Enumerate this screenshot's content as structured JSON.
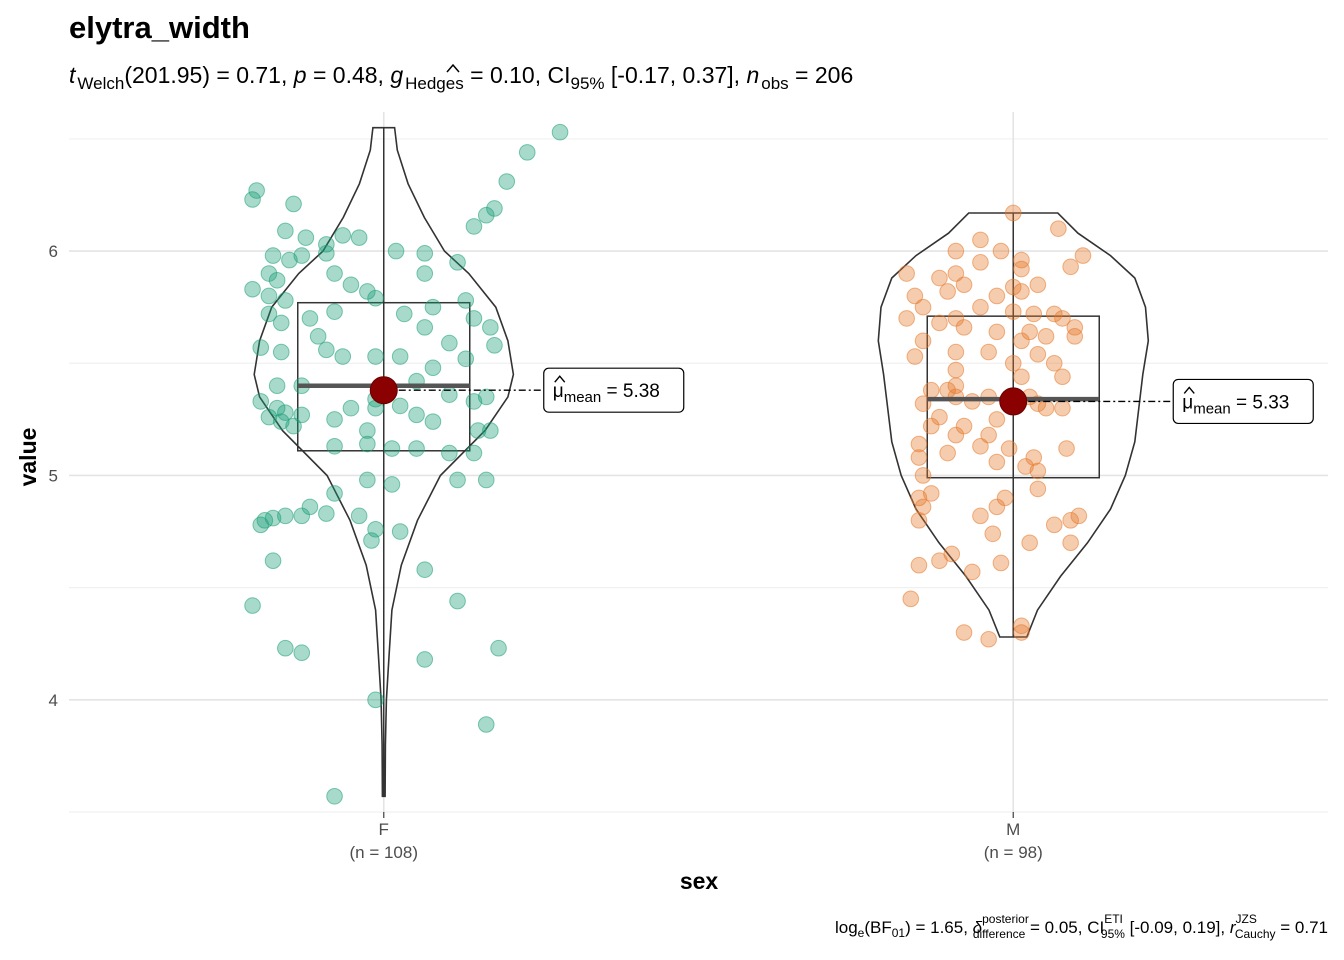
{
  "chart_data": {
    "type": "violin-box-scatter",
    "title": "elytra_width",
    "subtitle": {
      "stat": "t",
      "stat_sub": "Welch",
      "df": "(201.95)",
      "stat_value": " = 0.71, ",
      "p_label": "p",
      "p_value": " = 0.48, ",
      "effect": "g",
      "effect_sub": "Hedges",
      "effect_value": " = 0.10, CI",
      "ci_sub": "95%",
      "ci_value": " [-0.17, 0.37], ",
      "n_label": "n",
      "n_sub": "obs",
      "n_value": " = 206"
    },
    "caption": {
      "log_label": "log",
      "log_sub": "e",
      "bf_label": "(BF",
      "bf_sub": "01",
      "bf_value": ") = 1.65, ",
      "delta": "δ",
      "delta_sup": "posterior",
      "delta_sub": "difference",
      "delta_value": " = 0.05, CI",
      "ci_sup": "ETI",
      "ci_sub": "95%",
      "ci_value": " [-0.09, 0.19], ",
      "r_label": "r",
      "r_sup": "JZS",
      "r_sub": "Cauchy",
      "r_value": " = 0.71"
    },
    "xlabel": "sex",
    "ylabel": "value",
    "ylim": [
      3.5,
      6.62
    ],
    "yticks": [
      4,
      5,
      6
    ],
    "ytick_labels": [
      "4",
      "5",
      "6"
    ],
    "grid": true,
    "legend": "none",
    "colors": {
      "F": "#1b9e77",
      "M": "#e6782a",
      "mean": "#8b0000",
      "outline": "#333333"
    },
    "groups": [
      {
        "name": "F",
        "n_label": "(n = 108)",
        "mean": 5.38,
        "mean_label": "μ",
        "mean_sub": "mean",
        "mean_value": " = 5.38",
        "box": {
          "q1": 5.11,
          "median": 5.4,
          "q3": 5.77,
          "whisker_low": 3.57,
          "whisker_high": 6.55
        },
        "density": [
          [
            3.57,
            0.01
          ],
          [
            3.8,
            0.012
          ],
          [
            4.0,
            0.02
          ],
          [
            4.2,
            0.04
          ],
          [
            4.4,
            0.06
          ],
          [
            4.6,
            0.13
          ],
          [
            4.8,
            0.25
          ],
          [
            5.0,
            0.42
          ],
          [
            5.2,
            0.75
          ],
          [
            5.35,
            0.92
          ],
          [
            5.45,
            0.96
          ],
          [
            5.6,
            0.92
          ],
          [
            5.75,
            0.83
          ],
          [
            5.9,
            0.63
          ],
          [
            6.0,
            0.45
          ],
          [
            6.15,
            0.3
          ],
          [
            6.3,
            0.18
          ],
          [
            6.45,
            0.1
          ],
          [
            6.55,
            0.08
          ]
        ],
        "points": [
          [
            5.43,
            6.53
          ],
          [
            5.35,
            6.44
          ],
          [
            5.3,
            6.31
          ],
          [
            5.25,
            6.16
          ],
          [
            5.27,
            6.19
          ],
          [
            5.22,
            6.11
          ],
          [
            4.69,
            6.27
          ],
          [
            4.68,
            6.23
          ],
          [
            4.78,
            6.21
          ],
          [
            4.76,
            6.09
          ],
          [
            4.81,
            6.06
          ],
          [
            4.86,
            6.03
          ],
          [
            4.9,
            6.07
          ],
          [
            4.94,
            6.06
          ],
          [
            4.86,
            5.99
          ],
          [
            4.8,
            5.98
          ],
          [
            4.73,
            5.98
          ],
          [
            4.77,
            5.96
          ],
          [
            5.03,
            6.0
          ],
          [
            5.1,
            5.99
          ],
          [
            5.18,
            5.95
          ],
          [
            5.1,
            5.9
          ],
          [
            4.72,
            5.9
          ],
          [
            4.88,
            5.9
          ],
          [
            4.74,
            5.87
          ],
          [
            4.92,
            5.85
          ],
          [
            4.96,
            5.82
          ],
          [
            5.2,
            5.78
          ],
          [
            5.22,
            5.7
          ],
          [
            5.12,
            5.75
          ],
          [
            5.05,
            5.72
          ],
          [
            4.98,
            5.79
          ],
          [
            4.68,
            5.83
          ],
          [
            4.72,
            5.8
          ],
          [
            4.76,
            5.78
          ],
          [
            4.72,
            5.72
          ],
          [
            4.75,
            5.68
          ],
          [
            4.82,
            5.7
          ],
          [
            4.88,
            5.73
          ],
          [
            5.1,
            5.66
          ],
          [
            5.26,
            5.66
          ],
          [
            5.27,
            5.58
          ],
          [
            5.16,
            5.59
          ],
          [
            4.7,
            5.57
          ],
          [
            4.75,
            5.55
          ],
          [
            4.86,
            5.56
          ],
          [
            4.9,
            5.53
          ],
          [
            4.98,
            5.53
          ],
          [
            5.04,
            5.53
          ],
          [
            5.12,
            5.48
          ],
          [
            4.74,
            5.4
          ],
          [
            4.8,
            5.4
          ],
          [
            5.16,
            5.36
          ],
          [
            5.25,
            5.35
          ],
          [
            5.22,
            5.33
          ],
          [
            4.7,
            5.33
          ],
          [
            4.74,
            5.3
          ],
          [
            4.76,
            5.28
          ],
          [
            4.72,
            5.26
          ],
          [
            4.75,
            5.24
          ],
          [
            4.78,
            5.22
          ],
          [
            4.8,
            5.27
          ],
          [
            4.88,
            5.25
          ],
          [
            4.92,
            5.3
          ],
          [
            4.98,
            5.3
          ],
          [
            5.04,
            5.31
          ],
          [
            5.08,
            5.27
          ],
          [
            5.12,
            5.24
          ],
          [
            5.23,
            5.2
          ],
          [
            5.26,
            5.2
          ],
          [
            4.88,
            5.13
          ],
          [
            4.96,
            5.14
          ],
          [
            5.02,
            5.12
          ],
          [
            5.08,
            5.12
          ],
          [
            5.16,
            5.1
          ],
          [
            5.22,
            5.1
          ],
          [
            5.25,
            4.98
          ],
          [
            5.18,
            4.98
          ],
          [
            5.02,
            4.96
          ],
          [
            4.96,
            4.98
          ],
          [
            4.88,
            4.92
          ],
          [
            4.82,
            4.86
          ],
          [
            4.86,
            4.83
          ],
          [
            4.76,
            4.82
          ],
          [
            4.73,
            4.81
          ],
          [
            4.71,
            4.8
          ],
          [
            4.7,
            4.78
          ],
          [
            4.8,
            4.82
          ],
          [
            4.94,
            4.82
          ],
          [
            4.98,
            4.76
          ],
          [
            5.04,
            4.75
          ],
          [
            4.97,
            4.71
          ],
          [
            4.73,
            4.62
          ],
          [
            5.1,
            4.58
          ],
          [
            4.68,
            4.42
          ],
          [
            5.18,
            4.44
          ],
          [
            4.76,
            4.23
          ],
          [
            4.8,
            4.21
          ],
          [
            5.28,
            4.23
          ],
          [
            5.1,
            4.18
          ],
          [
            4.98,
            4.0
          ],
          [
            5.25,
            3.89
          ],
          [
            4.88,
            3.57
          ],
          [
            4.98,
            5.34
          ],
          [
            4.96,
            5.2
          ],
          [
            5.08,
            5.42
          ],
          [
            4.84,
            5.62
          ],
          [
            5.2,
            5.52
          ]
        ]
      },
      {
        "name": "M",
        "n_label": "(n = 98)",
        "mean": 5.33,
        "mean_label": "μ",
        "mean_sub": "mean",
        "mean_value": " = 5.33",
        "box": {
          "q1": 4.99,
          "median": 5.34,
          "q3": 5.71,
          "whisker_low": 4.28,
          "whisker_high": 6.17
        },
        "density": [
          [
            4.28,
            0.1
          ],
          [
            4.4,
            0.18
          ],
          [
            4.55,
            0.35
          ],
          [
            4.7,
            0.55
          ],
          [
            4.85,
            0.72
          ],
          [
            5.0,
            0.83
          ],
          [
            5.15,
            0.9
          ],
          [
            5.3,
            0.93
          ],
          [
            5.45,
            0.96
          ],
          [
            5.6,
            1.0
          ],
          [
            5.75,
            0.98
          ],
          [
            5.88,
            0.9
          ],
          [
            5.98,
            0.72
          ],
          [
            6.08,
            0.48
          ],
          [
            6.17,
            0.33
          ]
        ],
        "points": [
          [
            5.0,
            6.17
          ],
          [
            5.11,
            6.1
          ],
          [
            4.92,
            6.05
          ],
          [
            4.97,
            6.0
          ],
          [
            4.86,
            6.0
          ],
          [
            5.17,
            5.98
          ],
          [
            5.02,
            5.96
          ],
          [
            4.92,
            5.95
          ],
          [
            5.14,
            5.93
          ],
          [
            5.02,
            5.92
          ],
          [
            4.86,
            5.9
          ],
          [
            4.74,
            5.9
          ],
          [
            4.82,
            5.88
          ],
          [
            4.88,
            5.85
          ],
          [
            5.0,
            5.84
          ],
          [
            5.02,
            5.82
          ],
          [
            5.06,
            5.85
          ],
          [
            4.76,
            5.8
          ],
          [
            4.84,
            5.82
          ],
          [
            4.78,
            5.75
          ],
          [
            4.92,
            5.75
          ],
          [
            5.0,
            5.73
          ],
          [
            5.05,
            5.72
          ],
          [
            5.1,
            5.72
          ],
          [
            5.12,
            5.7
          ],
          [
            5.15,
            5.66
          ],
          [
            4.74,
            5.7
          ],
          [
            4.82,
            5.68
          ],
          [
            4.88,
            5.66
          ],
          [
            4.96,
            5.64
          ],
          [
            5.02,
            5.6
          ],
          [
            5.08,
            5.62
          ],
          [
            5.15,
            5.62
          ],
          [
            5.06,
            5.54
          ],
          [
            4.78,
            5.6
          ],
          [
            4.86,
            5.55
          ],
          [
            4.94,
            5.55
          ],
          [
            5.0,
            5.5
          ],
          [
            4.76,
            5.53
          ],
          [
            4.86,
            5.47
          ],
          [
            4.8,
            5.38
          ],
          [
            4.84,
            5.38
          ],
          [
            4.86,
            5.35
          ],
          [
            5.04,
            5.35
          ],
          [
            5.06,
            5.32
          ],
          [
            5.08,
            5.3
          ],
          [
            5.12,
            5.3
          ],
          [
            4.9,
            5.33
          ],
          [
            4.94,
            5.35
          ],
          [
            4.78,
            5.32
          ],
          [
            4.82,
            5.26
          ],
          [
            4.88,
            5.22
          ],
          [
            4.94,
            5.18
          ],
          [
            4.8,
            5.22
          ],
          [
            4.86,
            5.18
          ],
          [
            4.92,
            5.13
          ],
          [
            4.77,
            5.14
          ],
          [
            4.77,
            5.08
          ],
          [
            4.84,
            5.1
          ],
          [
            4.99,
            5.12
          ],
          [
            5.05,
            5.08
          ],
          [
            5.03,
            5.04
          ],
          [
            4.96,
            5.06
          ],
          [
            5.13,
            5.12
          ],
          [
            5.06,
            5.02
          ],
          [
            5.16,
            4.82
          ],
          [
            5.14,
            4.8
          ],
          [
            5.1,
            4.78
          ],
          [
            5.14,
            4.7
          ],
          [
            5.04,
            4.7
          ],
          [
            4.95,
            4.74
          ],
          [
            4.77,
            4.8
          ],
          [
            4.78,
            4.86
          ],
          [
            4.77,
            4.9
          ],
          [
            4.8,
            4.92
          ],
          [
            4.96,
            4.86
          ],
          [
            4.92,
            4.82
          ],
          [
            4.82,
            4.62
          ],
          [
            4.85,
            4.65
          ],
          [
            4.9,
            4.57
          ],
          [
            4.77,
            4.6
          ],
          [
            4.97,
            4.61
          ],
          [
            4.75,
            4.45
          ],
          [
            4.88,
            4.3
          ],
          [
            4.94,
            4.27
          ],
          [
            5.02,
            4.3
          ],
          [
            5.02,
            4.33
          ],
          [
            4.86,
            5.7
          ],
          [
            4.96,
            5.8
          ],
          [
            5.04,
            5.64
          ],
          [
            4.86,
            5.4
          ],
          [
            5.02,
            5.44
          ],
          [
            5.12,
            5.44
          ],
          [
            4.78,
            5.0
          ],
          [
            4.98,
            4.9
          ],
          [
            5.06,
            4.94
          ],
          [
            5.1,
            5.5
          ],
          [
            4.96,
            5.25
          ]
        ]
      }
    ]
  }
}
